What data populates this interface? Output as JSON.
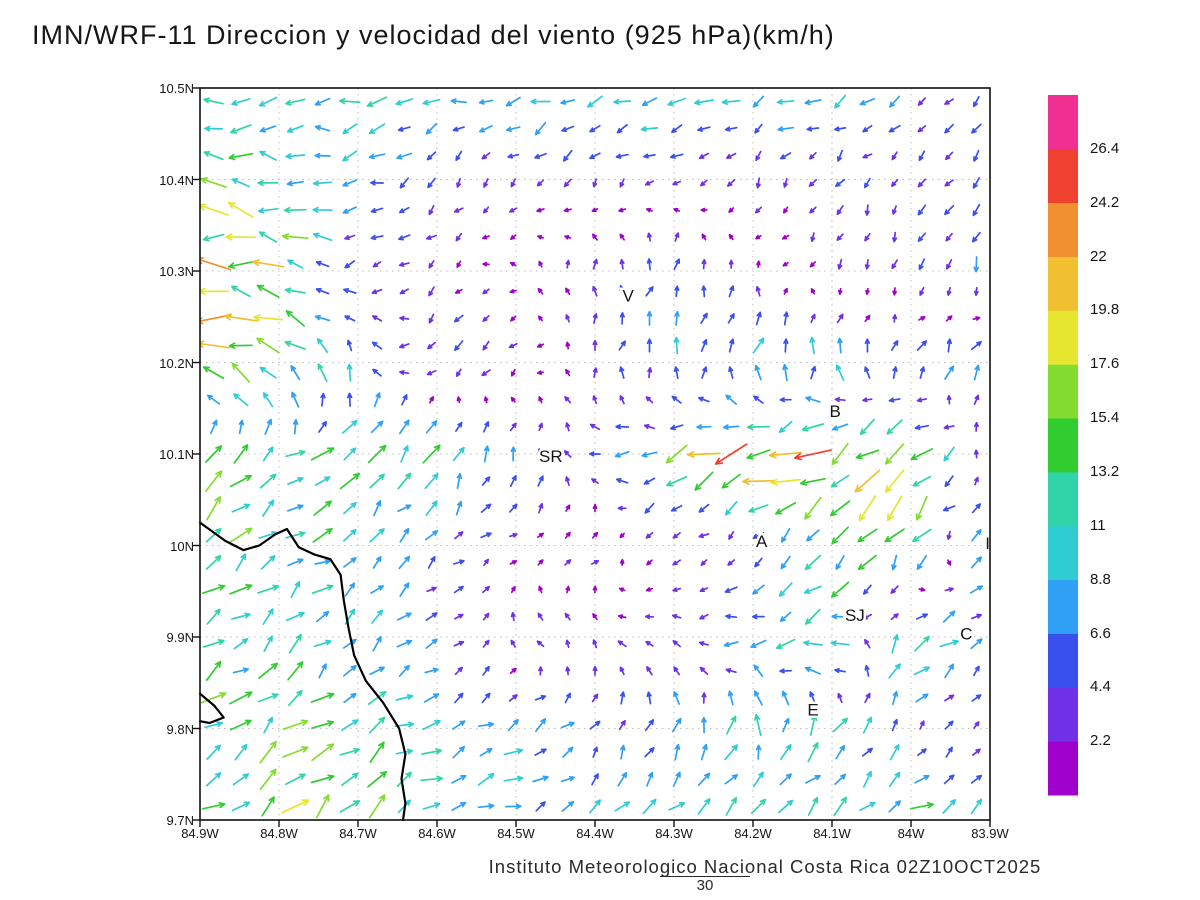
{
  "title": "IMN/WRF-11 Direccion y velocidad del viento (925 hPa)(km/h)",
  "caption": "Instituto Meteorologico Nacional Costa Rica 02Z10OCT2025",
  "footnote": "30",
  "chart_data": {
    "type": "vector-field",
    "units": "km/h",
    "x_axis": {
      "range": [
        -84.9,
        -83.9
      ],
      "tick_labels": [
        "84.9W",
        "84.8W",
        "84.7W",
        "84.6W",
        "84.5W",
        "84.4W",
        "84.3W",
        "84.2W",
        "84.1W",
        "84W",
        "83.9W"
      ],
      "tick_values": [
        -84.9,
        -84.8,
        -84.7,
        -84.6,
        -84.5,
        -84.4,
        -84.3,
        -84.2,
        -84.1,
        -84.0,
        -83.9
      ]
    },
    "y_axis": {
      "range": [
        9.7,
        10.5
      ],
      "tick_labels": [
        "10.5N",
        "10.4N",
        "10.3N",
        "10.2N",
        "10.1N",
        "10N",
        "9.9N",
        "9.8N",
        "9.7N"
      ],
      "tick_values": [
        10.5,
        10.4,
        10.3,
        10.2,
        10.1,
        10.0,
        9.9,
        9.8,
        9.7
      ]
    },
    "colorbar": {
      "levels": [
        2.2,
        4.4,
        6.6,
        8.8,
        11,
        13.2,
        15.4,
        17.6,
        19.8,
        22,
        24.2,
        26.4
      ],
      "colors": [
        "#a000cc",
        "#7030e8",
        "#3a50ee",
        "#30a0f5",
        "#30ccd4",
        "#30d4a8",
        "#30cc30",
        "#84dc30",
        "#e6e630",
        "#f0c030",
        "#f09030",
        "#f04030",
        "#f03090"
      ]
    },
    "stations": [
      {
        "label": "V",
        "lon": -84.358,
        "lat": 10.273
      },
      {
        "label": "B",
        "lon": -84.096,
        "lat": 10.147
      },
      {
        "label": "SR",
        "lon": -84.456,
        "lat": 10.098
      },
      {
        "label": "A",
        "lon": -84.189,
        "lat": 10.005
      },
      {
        "label": "I",
        "lon": -83.903,
        "lat": 10.003
      },
      {
        "label": "SJ",
        "lon": -84.071,
        "lat": 9.924
      },
      {
        "label": "C",
        "lon": -83.93,
        "lat": 9.904
      },
      {
        "label": "E",
        "lon": -84.124,
        "lat": 9.821
      }
    ],
    "coastline": [
      [
        [
          -84.9,
          10.025
        ],
        [
          -84.868,
          10.005
        ],
        [
          -84.845,
          9.995
        ],
        [
          -84.825,
          10.0
        ],
        [
          -84.805,
          10.012
        ],
        [
          -84.79,
          10.018
        ],
        [
          -84.775,
          9.998
        ],
        [
          -84.755,
          9.99
        ],
        [
          -84.735,
          9.985
        ],
        [
          -84.722,
          9.968
        ],
        [
          -84.718,
          9.94
        ],
        [
          -84.712,
          9.91
        ],
        [
          -84.705,
          9.88
        ],
        [
          -84.69,
          9.852
        ],
        [
          -84.668,
          9.828
        ],
        [
          -84.648,
          9.8
        ],
        [
          -84.64,
          9.772
        ],
        [
          -84.645,
          9.745
        ],
        [
          -84.64,
          9.718
        ],
        [
          -84.643,
          9.7
        ]
      ],
      [
        [
          -84.9,
          9.838
        ],
        [
          -84.882,
          9.825
        ],
        [
          -84.87,
          9.812
        ],
        [
          -84.888,
          9.806
        ],
        [
          -84.9,
          9.808
        ]
      ]
    ],
    "wind_field": {
      "description": "Coarse sampled wind grid (u eastward, v northward, km/h); rows ordered north to south",
      "lon_points": [
        -84.9,
        -84.8,
        -84.7,
        -84.6,
        -84.5,
        -84.4,
        -84.3,
        -84.2,
        -84.1,
        -84.0,
        -83.9
      ],
      "lat_points": [
        10.5,
        10.4,
        10.3,
        10.2,
        10.1,
        10.0,
        9.9,
        9.8,
        9.7
      ],
      "u": [
        [
          -9,
          -9,
          -10,
          -9,
          -9,
          -9,
          -9,
          -8,
          -7,
          -5,
          -4
        ],
        [
          -14,
          -12,
          -6,
          -3,
          -2,
          -2,
          -2,
          -2,
          -2,
          -2,
          -3
        ],
        [
          -19,
          -14,
          -4,
          -2,
          -1,
          0,
          1,
          0,
          -1,
          -1,
          -1
        ],
        [
          -22,
          -10,
          -3,
          -4,
          -2,
          1,
          3,
          2,
          2,
          3,
          4
        ],
        [
          9,
          10,
          8,
          6,
          2,
          -4,
          -12,
          -18,
          -16,
          -14,
          3
        ],
        [
          11,
          10,
          8,
          4,
          2,
          2,
          -2,
          -2,
          -6,
          -8,
          6
        ],
        [
          8,
          7,
          6,
          4,
          -2,
          -2,
          -3,
          -8,
          -13,
          10,
          4
        ],
        [
          10,
          10,
          9,
          8,
          7,
          3,
          1,
          2,
          4,
          3,
          2
        ],
        [
          12,
          12,
          11,
          9,
          8,
          7,
          8,
          8,
          9,
          12,
          6
        ]
      ],
      "v": [
        [
          -2,
          -2,
          -2,
          -2,
          -3,
          -3,
          -3,
          -3,
          -3,
          -3,
          -4
        ],
        [
          3,
          2,
          -2,
          -3,
          -3,
          -3,
          -2,
          -3,
          -3,
          -3,
          -3
        ],
        [
          2,
          3,
          -2,
          -2,
          1,
          4,
          5,
          2,
          -3,
          -5,
          -6
        ],
        [
          4,
          9,
          6,
          -4,
          -3,
          4,
          7,
          9,
          9,
          8,
          6
        ],
        [
          6,
          6,
          8,
          9,
          6,
          2,
          -5,
          -7,
          -10,
          -12,
          5
        ],
        [
          8,
          7,
          6,
          3,
          1,
          1,
          -2,
          -2,
          -10,
          -12,
          8
        ],
        [
          6,
          6,
          5,
          3,
          2,
          2,
          1,
          -2,
          -3,
          9,
          2
        ],
        [
          8,
          8,
          7,
          4,
          3,
          5,
          7,
          10,
          9,
          3,
          2
        ],
        [
          9,
          9,
          8,
          5,
          3,
          3,
          5,
          6,
          6,
          5,
          5
        ]
      ]
    }
  }
}
